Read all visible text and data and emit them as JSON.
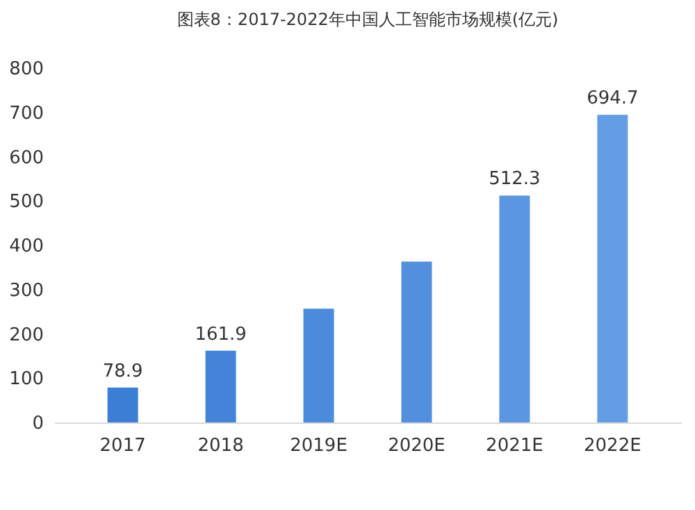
{
  "chart_data": {
    "type": "bar",
    "title": "图表8：2017-2022年中国人工智能市场规模(亿元)",
    "categories": [
      "2017",
      "2018",
      "2019E",
      "2020E",
      "2021E",
      "2022E"
    ],
    "values": [
      78.9,
      161.9,
      257,
      363,
      512.3,
      694.7
    ],
    "value_labels": [
      "78.9",
      "161.9",
      null,
      null,
      "512.3",
      "694.7"
    ],
    "colors": [
      "#3c7dd6",
      "#4384d9",
      "#4a8bdc",
      "#528fde",
      "#5a96e1",
      "#639ee5"
    ],
    "ylim": [
      0,
      800
    ],
    "yticks": [
      0,
      100,
      200,
      300,
      400,
      500,
      600,
      700,
      800
    ],
    "grid": false
  }
}
